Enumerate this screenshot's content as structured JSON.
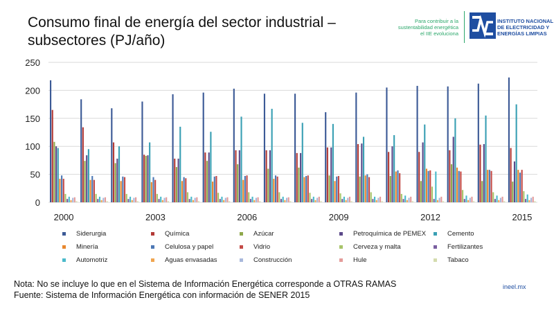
{
  "header": {
    "title_line1": "Consumo final de energía del sector industrial –",
    "title_line2": "subsectores (PJ/año)"
  },
  "logo": {
    "tagline_1": "Para contribuir a la",
    "tagline_2": "sustentabilidad energética",
    "tagline_3": "el IIE evoluciona",
    "name_1": "INSTITUTO NACIONAL",
    "name_2": "DE ELECTRICIDAD Y",
    "name_3": "ENERGÍAS LIMPIAS"
  },
  "footer": {
    "note": "Nota: No se incluye lo que en el Sistema de Información Energética corresponde a OTRAS RAMAS",
    "source": "Fuente: Sistema de Información Energética con información de SENER 2015",
    "site": "ineel.mx"
  },
  "chart_data": {
    "type": "bar",
    "title": "Consumo final de energía del sector industrial – subsectores (PJ/año)",
    "xlabel": "",
    "ylabel": "",
    "ylim": [
      0,
      250
    ],
    "yticks": [
      0,
      50,
      100,
      150,
      200,
      250
    ],
    "grid": true,
    "legend_position": "bottom",
    "categories": [
      "2000",
      "2001",
      "2002",
      "2003",
      "2004",
      "2005",
      "2006",
      "2007",
      "2008",
      "2009",
      "2010",
      "2011",
      "2012",
      "2013",
      "2014",
      "2015"
    ],
    "category_tick_labels": [
      "2000",
      "",
      "",
      "2003",
      "",
      "",
      "2006",
      "",
      "",
      "2009",
      "",
      "",
      "2012",
      "",
      "",
      "2015"
    ],
    "series": [
      {
        "name": "Siderurgia",
        "color": "#3c5a96",
        "values": [
          218,
          184,
          168,
          180,
          193,
          196,
          203,
          194,
          194,
          161,
          196,
          205,
          208,
          207,
          212,
          223
        ]
      },
      {
        "name": "Química",
        "color": "#b33a36",
        "values": [
          165,
          134,
          107,
          85,
          78,
          89,
          93,
          93,
          88,
          98,
          104,
          90,
          90,
          93,
          103,
          97
        ]
      },
      {
        "name": "Azúcar",
        "color": "#8fa84b",
        "values": [
          108,
          74,
          70,
          83,
          63,
          74,
          68,
          60,
          62,
          48,
          46,
          47,
          38,
          68,
          38,
          37
        ]
      },
      {
        "name": "Petroquímica de PEMEX",
        "color": "#5c4a8a",
        "values": [
          100,
          84,
          78,
          84,
          78,
          89,
          93,
          93,
          88,
          98,
          105,
          100,
          107,
          117,
          104,
          73
        ]
      },
      {
        "name": "Cemento",
        "color": "#3aa0b4",
        "values": [
          97,
          95,
          100,
          107,
          135,
          126,
          153,
          167,
          142,
          140,
          117,
          120,
          139,
          150,
          155,
          175
        ]
      },
      {
        "name": "Minería",
        "color": "#e8872e",
        "values": [
          42,
          40,
          38,
          36,
          38,
          37,
          40,
          42,
          45,
          38,
          48,
          55,
          60,
          62,
          58,
          58
        ]
      },
      {
        "name": "Celulosa y papel",
        "color": "#4d78b5",
        "values": [
          48,
          47,
          46,
          45,
          45,
          46,
          47,
          48,
          47,
          46,
          50,
          57,
          56,
          56,
          58,
          53
        ]
      },
      {
        "name": "Vidrio",
        "color": "#c44b47",
        "values": [
          42,
          40,
          45,
          40,
          43,
          47,
          48,
          46,
          48,
          47,
          45,
          52,
          57,
          55,
          56,
          58
        ]
      },
      {
        "name": "Cerveza y malta",
        "color": "#a8c46a",
        "values": [
          15,
          15,
          15,
          15,
          18,
          17,
          18,
          18,
          17,
          16,
          18,
          15,
          28,
          22,
          18,
          20
        ]
      },
      {
        "name": "Fertilizantes",
        "color": "#7a5fa0",
        "values": [
          6,
          6,
          6,
          6,
          6,
          6,
          6,
          6,
          6,
          6,
          6,
          6,
          6,
          6,
          6,
          6
        ]
      },
      {
        "name": "Automotriz",
        "color": "#4bbacb",
        "values": [
          10,
          10,
          10,
          10,
          10,
          10,
          10,
          10,
          10,
          10,
          10,
          12,
          55,
          12,
          12,
          14
        ]
      },
      {
        "name": "Aguas envasadas",
        "color": "#f0a550",
        "values": [
          4,
          4,
          4,
          4,
          4,
          4,
          4,
          4,
          4,
          4,
          4,
          4,
          4,
          4,
          4,
          4
        ]
      },
      {
        "name": "Construcción",
        "color": "#a9b8dc",
        "values": [
          8,
          8,
          8,
          8,
          8,
          8,
          8,
          8,
          8,
          8,
          8,
          8,
          8,
          8,
          8,
          8
        ]
      },
      {
        "name": "Hule",
        "color": "#e49c9a",
        "values": [
          9,
          9,
          9,
          9,
          9,
          9,
          9,
          9,
          10,
          10,
          10,
          10,
          10,
          10,
          10,
          10
        ]
      },
      {
        "name": "Tabaco",
        "color": "#d4dcae",
        "values": [
          2,
          2,
          2,
          2,
          2,
          2,
          2,
          2,
          2,
          2,
          2,
          2,
          2,
          2,
          2,
          2
        ]
      }
    ]
  }
}
